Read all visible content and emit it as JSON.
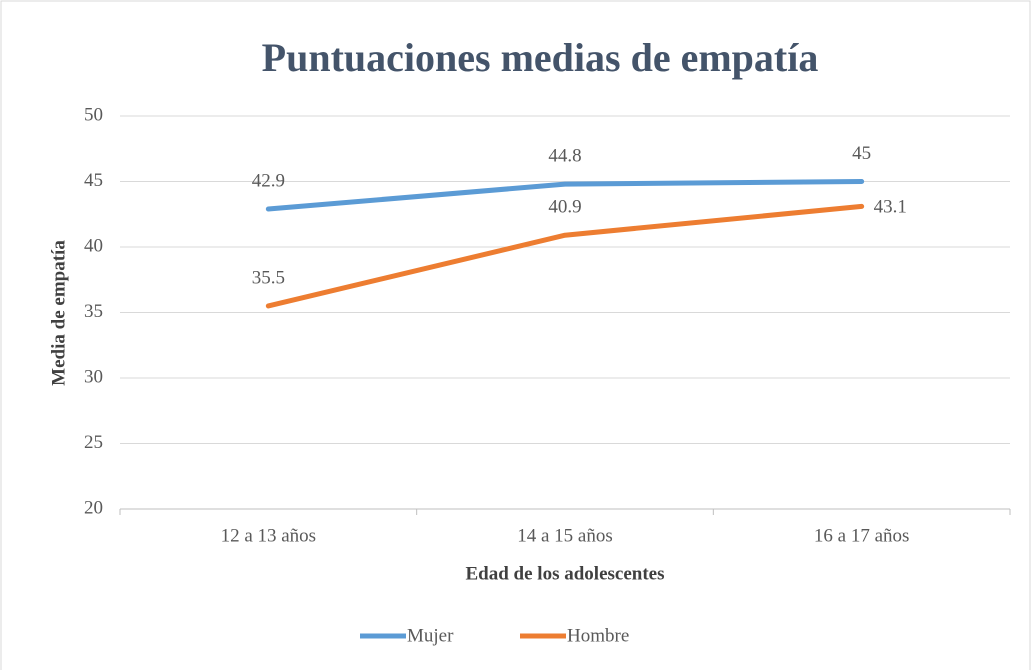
{
  "chart_data": {
    "type": "line",
    "title": "Puntuaciones medias de empatía",
    "x_label": "Edad de los adolescentes",
    "y_label": "Media de empatía",
    "categories": [
      "12 a 13 años",
      "14 a 15 años",
      "16 a 17 años"
    ],
    "series": [
      {
        "name": "Mujer",
        "color": "#5b9bd5",
        "values": [
          42.9,
          44.8,
          45
        ]
      },
      {
        "name": "Hombre",
        "color": "#ed7d31",
        "values": [
          35.5,
          40.9,
          43.1
        ]
      }
    ],
    "ylim": [
      20,
      50
    ],
    "yticks": [
      20,
      25,
      30,
      35,
      40,
      45,
      50
    ],
    "grid": true,
    "legend": "bottom"
  }
}
